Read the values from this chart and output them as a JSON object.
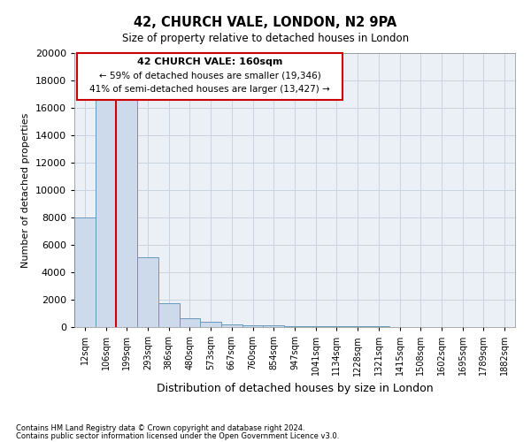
{
  "title1": "42, CHURCH VALE, LONDON, N2 9PA",
  "title2": "Size of property relative to detached houses in London",
  "xlabel": "Distribution of detached houses by size in London",
  "ylabel": "Number of detached properties",
  "bar_labels": [
    "12sqm",
    "106sqm",
    "199sqm",
    "293sqm",
    "386sqm",
    "480sqm",
    "573sqm",
    "667sqm",
    "760sqm",
    "854sqm",
    "947sqm",
    "1041sqm",
    "1134sqm",
    "1228sqm",
    "1321sqm",
    "1415sqm",
    "1508sqm",
    "1602sqm",
    "1695sqm",
    "1789sqm",
    "1882sqm"
  ],
  "bar_values": [
    8000,
    16600,
    16600,
    5100,
    1750,
    620,
    360,
    210,
    140,
    100,
    80,
    65,
    55,
    45,
    35,
    28,
    22,
    17,
    12,
    8,
    5
  ],
  "bar_color": "#ccdaeb",
  "bar_edge_color": "#6699bb",
  "grid_color": "#c8d4e0",
  "bg_color": "#eaf0f6",
  "ylim": [
    0,
    20000
  ],
  "yticks": [
    0,
    2000,
    4000,
    6000,
    8000,
    10000,
    12000,
    14000,
    16000,
    18000,
    20000
  ],
  "redline_x": 1.5,
  "annotation_title": "42 CHURCH VALE: 160sqm",
  "annotation_line1": "← 59% of detached houses are smaller (19,346)",
  "annotation_line2": "41% of semi-detached houses are larger (13,427) →",
  "annotation_color": "#cc0000",
  "footer1": "Contains HM Land Registry data © Crown copyright and database right 2024.",
  "footer2": "Contains public sector information licensed under the Open Government Licence v3.0."
}
